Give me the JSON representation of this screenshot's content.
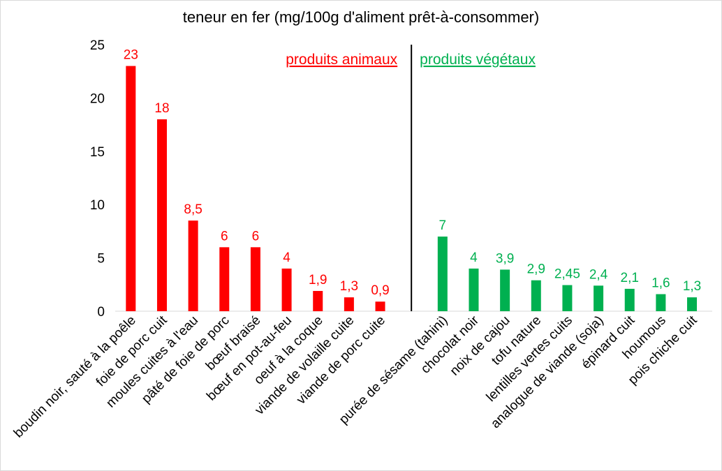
{
  "chart_data": {
    "type": "bar",
    "title": "teneur en fer (mg/100g d'aliment prêt-à-consommer)",
    "xlabel": "",
    "ylabel": "",
    "ylim": [
      0,
      25
    ],
    "yticks": [
      "0",
      "5",
      "10",
      "15",
      "20",
      "25"
    ],
    "grid": false,
    "legend": "none",
    "colors": {
      "animal": "#ff0000",
      "vegetal": "#00b050",
      "divider": "#000000",
      "axis": "#d9d9d9",
      "text": "#000000"
    },
    "groups": [
      {
        "label": "produits animaux",
        "color_key": "animal",
        "categories": [
          "boudin noir, sauté à la poêle",
          "foie de porc cuit",
          "moules cuites à l'eau",
          "pâté de foie de porc",
          "bœuf braisé",
          "bœuf en pot-au-feu",
          "oeuf à la coque",
          "viande de volaille cuite",
          "viande de porc cuite"
        ],
        "values": [
          23,
          18,
          8.5,
          6,
          6,
          4,
          1.9,
          1.3,
          0.9
        ],
        "data_labels": [
          "23",
          "18",
          "8,5",
          "6",
          "6",
          "4",
          "1,9",
          "1,3",
          "0,9"
        ]
      },
      {
        "label": "produits végétaux",
        "color_key": "vegetal",
        "categories": [
          "purée de sésame (tahini)",
          "chocolat noir",
          "noix de cajou",
          "tofu nature",
          "lentilles vertes cuits",
          "analogue de viande (soja)",
          "épinard cuit",
          "houmous",
          "pois chiche cuit"
        ],
        "values": [
          7,
          4,
          3.9,
          2.9,
          2.45,
          2.4,
          2.1,
          1.6,
          1.3
        ],
        "data_labels": [
          "7",
          "4",
          "3,9",
          "2,9",
          "2,45",
          "2,4",
          "2,1",
          "1,6",
          "1,3"
        ]
      }
    ]
  }
}
